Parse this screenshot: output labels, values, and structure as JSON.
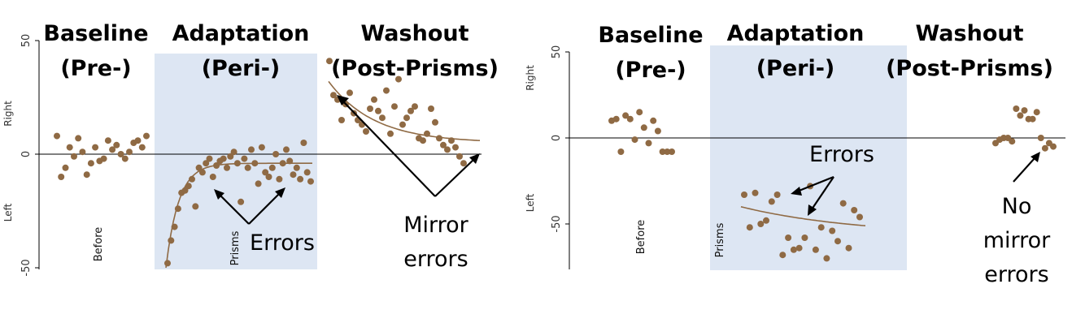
{
  "colors": {
    "point": "#8f6a44",
    "curve": "#8f6a44",
    "shade": "#dde6f3",
    "axis": "#000000"
  },
  "chart_data": [
    {
      "type": "scatter",
      "panel": "left",
      "ylim": [
        -50,
        50
      ],
      "yticks": [
        "-50",
        "0",
        "50"
      ],
      "ylabel_top": "Right",
      "ylabel_bottom": "Left",
      "phases": [
        {
          "title1": "Baseline",
          "title2": "(Pre-)",
          "condition": "Before"
        },
        {
          "title1": "Adaptation",
          "title2": "(Peri-)",
          "condition": "Prisms"
        },
        {
          "title1": "Washout",
          "title2": "(Post-Prisms)",
          "condition": ""
        }
      ],
      "annotations": [
        {
          "lines": [
            "Errors"
          ]
        },
        {
          "lines": [
            "Mirror",
            "errors"
          ]
        }
      ],
      "series": [
        {
          "phase": "before",
          "x": [
            1,
            2,
            3,
            4,
            5,
            6,
            7,
            8,
            9,
            10,
            11,
            12,
            13,
            14,
            15,
            16,
            17,
            18,
            19,
            20,
            21,
            22
          ],
          "y": [
            8,
            -10,
            -6,
            3,
            -1,
            7,
            1,
            -9,
            -4,
            3,
            -3,
            -2,
            6,
            2,
            4,
            0,
            -2,
            1,
            5,
            6,
            3,
            8
          ]
        },
        {
          "phase": "prisms",
          "x": [
            23,
            24,
            25,
            26,
            27,
            28,
            29,
            30,
            31,
            32,
            33,
            34,
            35,
            36,
            37,
            38,
            39,
            40,
            41,
            42,
            43,
            44,
            45,
            46,
            47,
            48,
            49,
            50,
            51,
            52,
            53,
            54,
            55,
            56,
            57,
            58,
            59,
            60,
            61,
            62,
            63,
            64
          ],
          "y": [
            -48,
            -38,
            -32,
            -24,
            -17,
            -16,
            -14,
            -11,
            -23,
            -6,
            -8,
            -4,
            -2,
            -10,
            -5,
            -3,
            -2,
            -6,
            -1,
            1,
            -4,
            -21,
            -2,
            -6,
            2,
            -4,
            -13,
            3,
            -8,
            -10,
            -6,
            0,
            -11,
            -4,
            2,
            -3,
            -9,
            -6,
            -11,
            5,
            -8,
            -12
          ],
          "fit": {
            "asymptote": -4,
            "start": -50,
            "rate": 0.28
          }
        },
        {
          "phase": "post",
          "x": [
            65,
            66,
            67,
            68,
            69,
            70,
            71,
            72,
            73,
            74,
            75,
            76,
            77,
            78,
            79,
            80,
            81,
            82,
            83,
            84,
            85,
            86,
            87,
            88,
            89,
            90,
            91,
            92,
            93,
            94,
            95,
            96,
            97,
            98
          ],
          "y": [
            41,
            26,
            24,
            15,
            22,
            27,
            18,
            15,
            13,
            10,
            20,
            24,
            19,
            16,
            28,
            9,
            21,
            33,
            13,
            16,
            19,
            21,
            7,
            6,
            9,
            20,
            14,
            7,
            4,
            2,
            6,
            3,
            -1,
            -4
          ],
          "fit": {
            "asymptote": 5,
            "start": 32,
            "rate": 0.1
          }
        }
      ]
    },
    {
      "type": "scatter",
      "panel": "right",
      "ylim": [
        -75,
        50
      ],
      "yticks": [
        "-50",
        "0",
        "50"
      ],
      "ylabel_top": "Right",
      "ylabel_bottom": "Left",
      "phases": [
        {
          "title1": "Baseline",
          "title2": "(Pre-)",
          "condition": "Before"
        },
        {
          "title1": "Adaptation",
          "title2": "(Peri-)",
          "condition": "Prisms"
        },
        {
          "title1": "Washout",
          "title2": "(Post-Prisms)",
          "condition": ""
        }
      ],
      "annotations": [
        {
          "lines": [
            "Errors"
          ]
        },
        {
          "lines": [
            "No",
            "mirror",
            "errors"
          ]
        }
      ],
      "series": [
        {
          "phase": "before",
          "x": [
            1,
            2,
            3,
            4,
            5,
            6,
            7,
            8,
            9,
            10,
            11,
            12,
            13,
            14
          ],
          "y": [
            10,
            11,
            -8,
            13,
            11,
            -1,
            15,
            6,
            -3,
            10,
            4,
            -8,
            -8,
            -8
          ]
        },
        {
          "phase": "prisms",
          "x": [
            15,
            16,
            17,
            18,
            19,
            20,
            21,
            22,
            23,
            24,
            25,
            26,
            27,
            28,
            29,
            30,
            31,
            32,
            33,
            34,
            35,
            36
          ],
          "y": [
            -33,
            -52,
            -32,
            -50,
            -48,
            -37,
            -33,
            -68,
            -58,
            -65,
            -64,
            -58,
            -28,
            -65,
            -52,
            -70,
            -54,
            -60,
            -38,
            -64,
            -42,
            -46
          ],
          "fit": {
            "asymptote": -57,
            "start": -40,
            "rate": 0.05
          }
        },
        {
          "phase": "post",
          "x": [
            37,
            38,
            39,
            40,
            41,
            42,
            43,
            44,
            45,
            46,
            47,
            48,
            49,
            50,
            51
          ],
          "y": [
            -3,
            -1,
            0,
            0,
            -2,
            17,
            13,
            16,
            11,
            11,
            15,
            0,
            -6,
            -3,
            -5
          ]
        }
      ]
    }
  ]
}
